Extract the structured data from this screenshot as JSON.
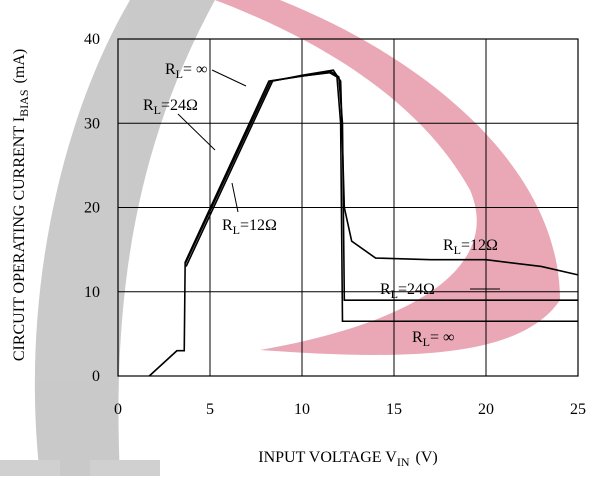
{
  "chart_data": {
    "type": "line",
    "x_label": {
      "text": "INPUT VOLTAGE V",
      "sub": "IN",
      "unit": "(V)"
    },
    "y_label": {
      "text": "CIRCUIT OPERATING CURRENT I",
      "sub": "BIAS",
      "unit": "(mA)"
    },
    "xlim": [
      0,
      25
    ],
    "ylim": [
      0,
      40
    ],
    "xticks": [
      0,
      5,
      10,
      15,
      20,
      25
    ],
    "yticks": [
      0,
      10,
      20,
      30,
      40
    ],
    "grid": true,
    "series": [
      {
        "color": "#000000",
        "x": [
          1.7,
          3.2,
          3.6,
          3.65,
          8.2,
          10,
          11.5,
          11.9,
          12.1,
          12.2,
          25
        ],
        "values": [
          0,
          3,
          3,
          13.5,
          35,
          35.6,
          36,
          35.5,
          30,
          6.5,
          6.5
        ]
      },
      {
        "color": "#000000",
        "x": [
          3.65,
          8.3,
          10,
          11.6,
          12.0,
          12.2,
          12.3,
          25
        ],
        "values": [
          13.3,
          35,
          35.6,
          36.1,
          35.5,
          30,
          9,
          9
        ]
      },
      {
        "color": "#000000",
        "x": [
          3.7,
          8.4,
          10,
          11.7,
          12.1,
          12.3,
          12.7,
          14,
          17,
          20,
          23,
          25
        ],
        "values": [
          13,
          35,
          35.7,
          36.3,
          35,
          20,
          16,
          14,
          13.8,
          13.8,
          13,
          12
        ]
      }
    ],
    "annotations": [
      {
        "base": "R",
        "sub": "L",
        "text": "= ∞"
      },
      {
        "base": "R",
        "sub": "L",
        "text": "=24Ω"
      },
      {
        "base": "R",
        "sub": "L",
        "text": "=12Ω"
      },
      {
        "base": "R",
        "sub": "L",
        "text": "=12Ω"
      },
      {
        "base": "R",
        "sub": "L",
        "text": "=24Ω"
      },
      {
        "base": "R",
        "sub": "L",
        "text": "= ∞"
      }
    ]
  }
}
